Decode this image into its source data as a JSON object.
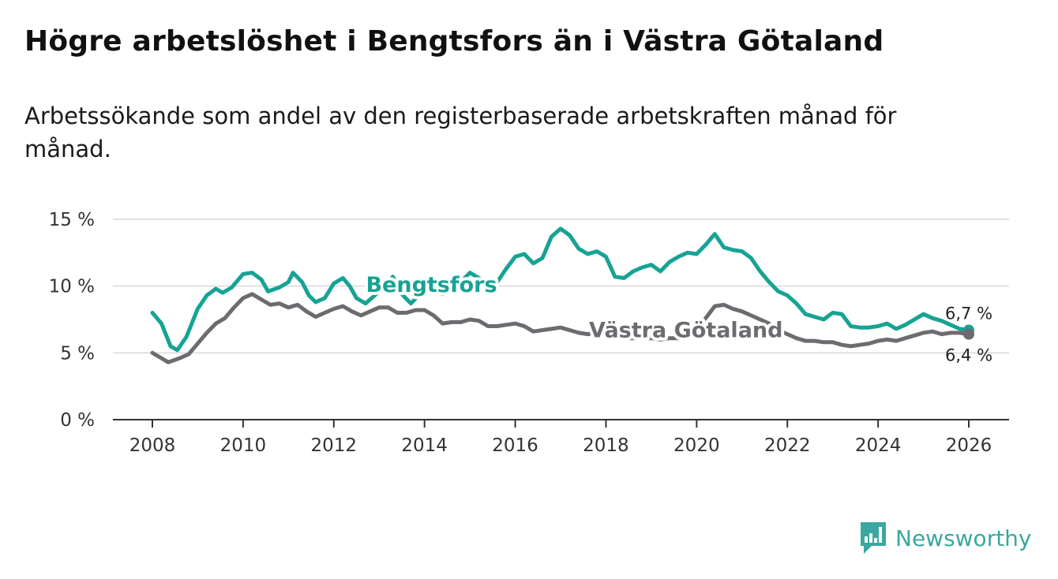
{
  "title": "Högre arbetslöshet i Bengtsfors än i Västra Götaland",
  "subtitle": "Arbetssökande som andel av den registerbaserade arbetskraften månad för månad.",
  "brand": {
    "name": "Newsworthy",
    "color": "#3aa7a0",
    "icon": "bar-chart-speech-icon"
  },
  "chart_data": {
    "type": "line",
    "title": "Högre arbetslöshet i Bengtsfors än i Västra Götaland",
    "xlabel": "",
    "ylabel": "",
    "xlim": [
      2008,
      2026
    ],
    "ylim": [
      0,
      15
    ],
    "x_ticks": [
      {
        "value": 2008,
        "label": "2008"
      },
      {
        "value": 2010,
        "label": "2010"
      },
      {
        "value": 2012,
        "label": "2012"
      },
      {
        "value": 2014,
        "label": "2014"
      },
      {
        "value": 2016,
        "label": "2016"
      },
      {
        "value": 2018,
        "label": "2018"
      },
      {
        "value": 2020,
        "label": "2020"
      },
      {
        "value": 2022,
        "label": "2022"
      },
      {
        "value": 2024,
        "label": "2024"
      },
      {
        "value": 2026,
        "label": "2026"
      }
    ],
    "y_ticks": [
      {
        "value": 0,
        "label": "0 %"
      },
      {
        "value": 5,
        "label": "5 %"
      },
      {
        "value": 10,
        "label": "10 %"
      },
      {
        "value": 15,
        "label": "15 %"
      }
    ],
    "grid": true,
    "series": [
      {
        "name": "Bengtsfors",
        "color": "#16a394",
        "end_label": "6,7 %",
        "label_position": "above",
        "points": [
          [
            2008.0,
            8.0
          ],
          [
            2008.2,
            7.2
          ],
          [
            2008.4,
            5.5
          ],
          [
            2008.55,
            5.2
          ],
          [
            2008.75,
            6.2
          ],
          [
            2009.0,
            8.3
          ],
          [
            2009.2,
            9.3
          ],
          [
            2009.4,
            9.8
          ],
          [
            2009.55,
            9.5
          ],
          [
            2009.75,
            9.9
          ],
          [
            2010.0,
            10.9
          ],
          [
            2010.2,
            11.0
          ],
          [
            2010.4,
            10.5
          ],
          [
            2010.55,
            9.6
          ],
          [
            2010.8,
            9.9
          ],
          [
            2011.0,
            10.3
          ],
          [
            2011.1,
            11.0
          ],
          [
            2011.3,
            10.3
          ],
          [
            2011.45,
            9.3
          ],
          [
            2011.6,
            8.8
          ],
          [
            2011.8,
            9.1
          ],
          [
            2012.0,
            10.2
          ],
          [
            2012.2,
            10.6
          ],
          [
            2012.35,
            10.0
          ],
          [
            2012.5,
            9.1
          ],
          [
            2012.7,
            8.7
          ],
          [
            2012.9,
            9.3
          ],
          [
            2013.1,
            9.9
          ],
          [
            2013.3,
            10.7
          ],
          [
            2013.5,
            9.4
          ],
          [
            2013.7,
            8.7
          ],
          [
            2013.9,
            9.4
          ],
          [
            2014.0,
            9.9
          ],
          [
            2014.2,
            9.7
          ],
          [
            2014.4,
            9.4
          ],
          [
            2014.6,
            9.8
          ],
          [
            2014.8,
            10.3
          ],
          [
            2015.0,
            11.0
          ],
          [
            2015.2,
            10.6
          ],
          [
            2015.4,
            10.0
          ],
          [
            2015.6,
            10.3
          ],
          [
            2015.8,
            11.3
          ],
          [
            2016.0,
            12.2
          ],
          [
            2016.2,
            12.4
          ],
          [
            2016.4,
            11.7
          ],
          [
            2016.6,
            12.1
          ],
          [
            2016.8,
            13.7
          ],
          [
            2017.0,
            14.3
          ],
          [
            2017.2,
            13.8
          ],
          [
            2017.4,
            12.8
          ],
          [
            2017.6,
            12.4
          ],
          [
            2017.8,
            12.6
          ],
          [
            2018.0,
            12.2
          ],
          [
            2018.2,
            10.7
          ],
          [
            2018.4,
            10.6
          ],
          [
            2018.6,
            11.1
          ],
          [
            2018.8,
            11.4
          ],
          [
            2019.0,
            11.6
          ],
          [
            2019.2,
            11.1
          ],
          [
            2019.4,
            11.8
          ],
          [
            2019.6,
            12.2
          ],
          [
            2019.8,
            12.5
          ],
          [
            2020.0,
            12.4
          ],
          [
            2020.2,
            13.1
          ],
          [
            2020.4,
            13.9
          ],
          [
            2020.6,
            12.9
          ],
          [
            2020.8,
            12.7
          ],
          [
            2021.0,
            12.6
          ],
          [
            2021.2,
            12.1
          ],
          [
            2021.4,
            11.1
          ],
          [
            2021.6,
            10.3
          ],
          [
            2021.8,
            9.6
          ],
          [
            2022.0,
            9.3
          ],
          [
            2022.2,
            8.7
          ],
          [
            2022.4,
            7.9
          ],
          [
            2022.6,
            7.7
          ],
          [
            2022.8,
            7.5
          ],
          [
            2023.0,
            8.0
          ],
          [
            2023.2,
            7.9
          ],
          [
            2023.4,
            7.0
          ],
          [
            2023.6,
            6.9
          ],
          [
            2023.8,
            6.9
          ],
          [
            2024.0,
            7.0
          ],
          [
            2024.2,
            7.2
          ],
          [
            2024.4,
            6.8
          ],
          [
            2024.6,
            7.1
          ],
          [
            2024.8,
            7.5
          ],
          [
            2025.0,
            7.9
          ],
          [
            2025.2,
            7.6
          ],
          [
            2025.4,
            7.4
          ],
          [
            2025.6,
            7.1
          ],
          [
            2025.8,
            6.8
          ],
          [
            2026.0,
            6.7
          ]
        ]
      },
      {
        "name": "Västra Götaland",
        "color": "#6e6b70",
        "end_label": "6,4 %",
        "label_position": "below",
        "points": [
          [
            2008.0,
            5.0
          ],
          [
            2008.2,
            4.6
          ],
          [
            2008.35,
            4.3
          ],
          [
            2008.6,
            4.6
          ],
          [
            2008.8,
            4.9
          ],
          [
            2009.0,
            5.7
          ],
          [
            2009.2,
            6.5
          ],
          [
            2009.4,
            7.2
          ],
          [
            2009.6,
            7.6
          ],
          [
            2009.8,
            8.4
          ],
          [
            2010.0,
            9.1
          ],
          [
            2010.2,
            9.4
          ],
          [
            2010.4,
            9.0
          ],
          [
            2010.6,
            8.6
          ],
          [
            2010.8,
            8.7
          ],
          [
            2011.0,
            8.4
          ],
          [
            2011.2,
            8.6
          ],
          [
            2011.4,
            8.1
          ],
          [
            2011.6,
            7.7
          ],
          [
            2011.8,
            8.0
          ],
          [
            2012.0,
            8.3
          ],
          [
            2012.2,
            8.5
          ],
          [
            2012.4,
            8.1
          ],
          [
            2012.6,
            7.8
          ],
          [
            2012.8,
            8.1
          ],
          [
            2013.0,
            8.4
          ],
          [
            2013.2,
            8.4
          ],
          [
            2013.4,
            8.0
          ],
          [
            2013.6,
            8.0
          ],
          [
            2013.8,
            8.2
          ],
          [
            2014.0,
            8.2
          ],
          [
            2014.2,
            7.8
          ],
          [
            2014.4,
            7.2
          ],
          [
            2014.6,
            7.3
          ],
          [
            2014.8,
            7.3
          ],
          [
            2015.0,
            7.5
          ],
          [
            2015.2,
            7.4
          ],
          [
            2015.4,
            7.0
          ],
          [
            2015.6,
            7.0
          ],
          [
            2015.8,
            7.1
          ],
          [
            2016.0,
            7.2
          ],
          [
            2016.2,
            7.0
          ],
          [
            2016.4,
            6.6
          ],
          [
            2016.6,
            6.7
          ],
          [
            2016.8,
            6.8
          ],
          [
            2017.0,
            6.9
          ],
          [
            2017.2,
            6.7
          ],
          [
            2017.4,
            6.5
          ],
          [
            2017.6,
            6.4
          ],
          [
            2017.8,
            6.5
          ],
          [
            2018.0,
            6.5
          ],
          [
            2018.2,
            6.3
          ],
          [
            2018.4,
            6.1
          ],
          [
            2018.6,
            6.1
          ],
          [
            2018.8,
            6.1
          ],
          [
            2019.0,
            6.1
          ],
          [
            2019.2,
            6.0
          ],
          [
            2019.4,
            6.1
          ],
          [
            2019.6,
            6.1
          ],
          [
            2019.8,
            6.2
          ],
          [
            2020.0,
            6.5
          ],
          [
            2020.2,
            7.6
          ],
          [
            2020.4,
            8.5
          ],
          [
            2020.6,
            8.6
          ],
          [
            2020.8,
            8.3
          ],
          [
            2021.0,
            8.1
          ],
          [
            2021.2,
            7.8
          ],
          [
            2021.4,
            7.5
          ],
          [
            2021.6,
            7.2
          ],
          [
            2021.8,
            6.7
          ],
          [
            2022.0,
            6.4
          ],
          [
            2022.2,
            6.1
          ],
          [
            2022.4,
            5.9
          ],
          [
            2022.6,
            5.9
          ],
          [
            2022.8,
            5.8
          ],
          [
            2023.0,
            5.8
          ],
          [
            2023.2,
            5.6
          ],
          [
            2023.4,
            5.5
          ],
          [
            2023.6,
            5.6
          ],
          [
            2023.8,
            5.7
          ],
          [
            2024.0,
            5.9
          ],
          [
            2024.2,
            6.0
          ],
          [
            2024.4,
            5.9
          ],
          [
            2024.6,
            6.1
          ],
          [
            2024.8,
            6.3
          ],
          [
            2025.0,
            6.5
          ],
          [
            2025.2,
            6.6
          ],
          [
            2025.4,
            6.4
          ],
          [
            2025.6,
            6.5
          ],
          [
            2025.8,
            6.5
          ],
          [
            2026.0,
            6.4
          ]
        ]
      }
    ],
    "series_labels": [
      {
        "text": "Bengtsfors",
        "x": 2015.6,
        "y": 10.1,
        "color": "#16a394"
      },
      {
        "text": "Västra Götaland",
        "x": 2021.9,
        "y": 6.7,
        "color": "#6e6b70"
      }
    ]
  }
}
